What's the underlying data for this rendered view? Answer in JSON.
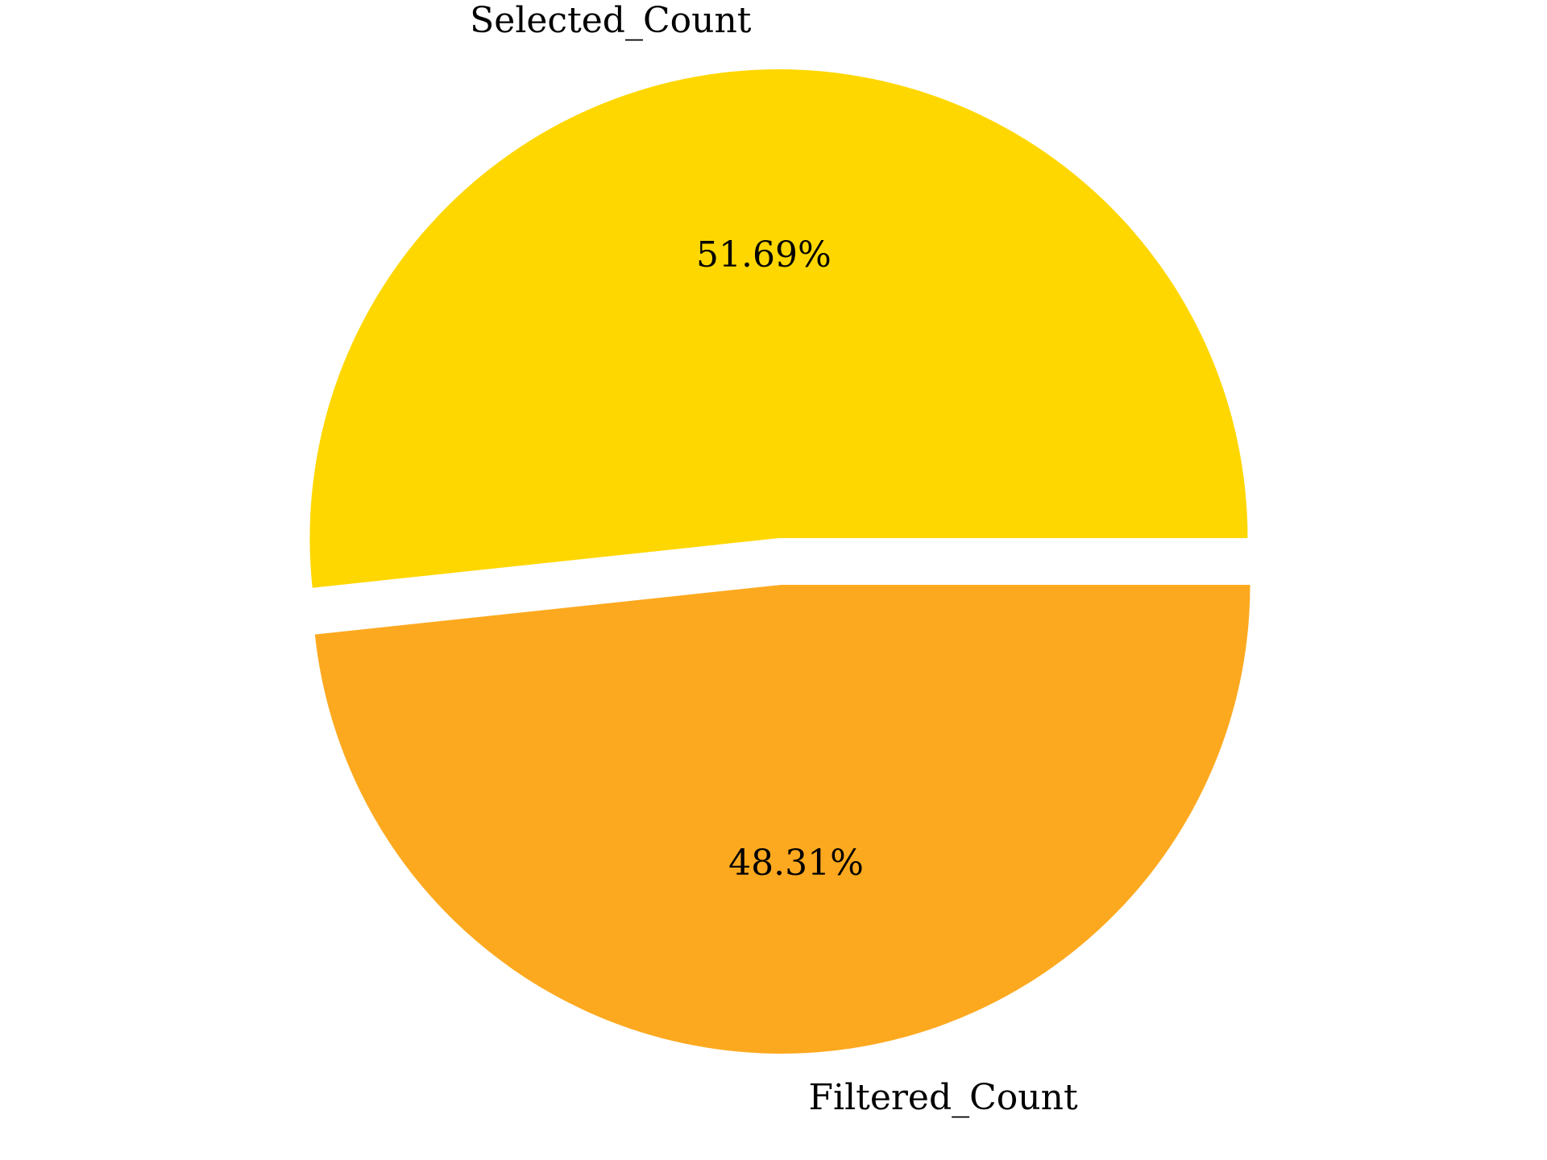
{
  "chart_data": {
    "type": "pie",
    "categories": [
      "Selected_Count",
      "Filtered_Count"
    ],
    "values": [
      51.69,
      48.31
    ],
    "percent_labels": [
      "51.69%",
      "48.31%"
    ],
    "colors": [
      "#FFD700",
      "#FDA91F"
    ],
    "exploded": true,
    "start_angle": "0deg, counterclockwise",
    "title": ""
  }
}
